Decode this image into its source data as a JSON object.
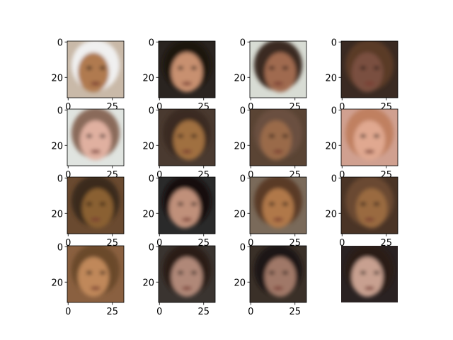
{
  "axes": {
    "xlim": [
      -0.5,
      31.5
    ],
    "ylim": [
      31.5,
      -0.5
    ],
    "xticks": [
      0,
      25
    ],
    "yticks": [
      0,
      20
    ]
  },
  "panels": [
    {
      "axis": true
    },
    {
      "axis": true
    },
    {
      "axis": true
    },
    {
      "axis": true
    },
    {
      "axis": true
    },
    {
      "axis": true
    },
    {
      "axis": true
    },
    {
      "axis": true
    },
    {
      "axis": true
    },
    {
      "axis": true
    },
    {
      "axis": true
    },
    {
      "axis": true
    },
    {
      "axis": true
    },
    {
      "axis": true
    },
    {
      "axis": true
    },
    {
      "axis": false
    }
  ]
}
